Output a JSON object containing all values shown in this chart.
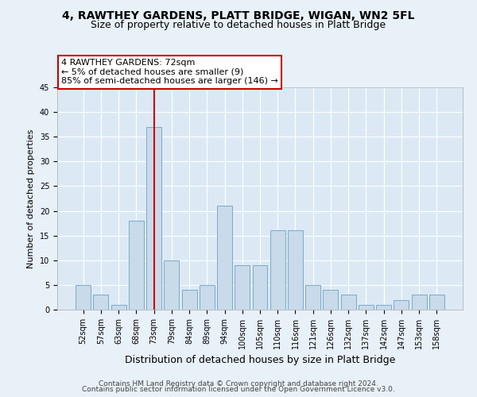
{
  "title1": "4, RAWTHEY GARDENS, PLATT BRIDGE, WIGAN, WN2 5FL",
  "title2": "Size of property relative to detached houses in Platt Bridge",
  "xlabel": "Distribution of detached houses by size in Platt Bridge",
  "ylabel": "Number of detached properties",
  "categories": [
    "52sqm",
    "57sqm",
    "63sqm",
    "68sqm",
    "73sqm",
    "79sqm",
    "84sqm",
    "89sqm",
    "94sqm",
    "100sqm",
    "105sqm",
    "110sqm",
    "116sqm",
    "121sqm",
    "126sqm",
    "132sqm",
    "137sqm",
    "142sqm",
    "147sqm",
    "153sqm",
    "158sqm"
  ],
  "values": [
    5,
    3,
    1,
    18,
    37,
    10,
    4,
    5,
    21,
    9,
    9,
    16,
    16,
    5,
    4,
    3,
    1,
    1,
    2,
    3,
    3
  ],
  "bar_color": "#c9daea",
  "bar_edge_color": "#7aaac8",
  "vline_x_index": 4,
  "vline_color": "#cc0000",
  "annotation_line1": "4 RAWTHEY GARDENS: 72sqm",
  "annotation_line2": "← 5% of detached houses are smaller (9)",
  "annotation_line3": "85% of semi-detached houses are larger (146) →",
  "annotation_box_color": "#ffffff",
  "annotation_box_edge": "#cc0000",
  "ylim": [
    0,
    45
  ],
  "yticks": [
    0,
    5,
    10,
    15,
    20,
    25,
    30,
    35,
    40,
    45
  ],
  "footer1": "Contains HM Land Registry data © Crown copyright and database right 2024.",
  "footer2": "Contains public sector information licensed under the Open Government Licence v3.0.",
  "background_color": "#e8f0f8",
  "plot_background": "#dce9f5",
  "grid_color": "#ffffff",
  "title1_fontsize": 10,
  "title2_fontsize": 9,
  "xlabel_fontsize": 9,
  "ylabel_fontsize": 8,
  "tick_fontsize": 7,
  "annotation_fontsize": 8,
  "footer_fontsize": 6.5
}
